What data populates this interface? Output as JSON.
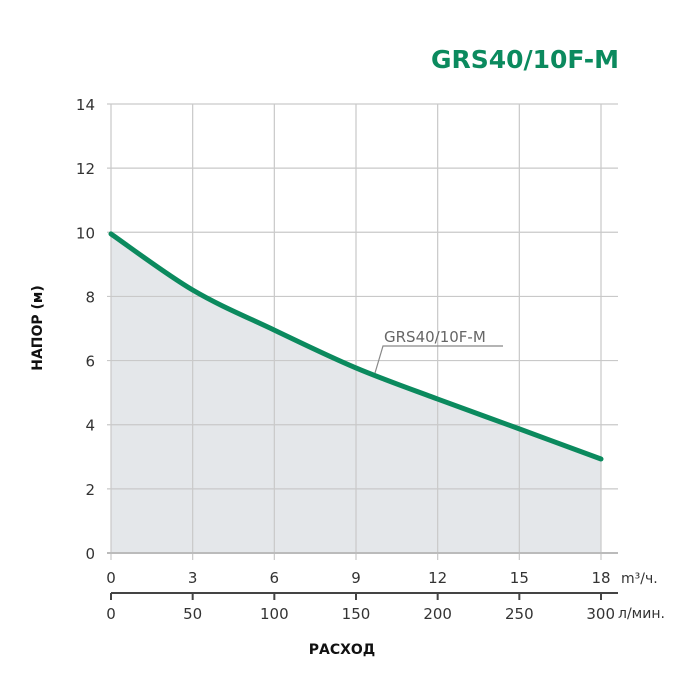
{
  "chart_data": {
    "type": "area",
    "title": "GRS40/10F-M",
    "ylabel": "НАПОР (м)",
    "xlabel": "РАСХОД",
    "x_unit": "m³/ч.",
    "x2_unit": "л/мин.",
    "xlim": [
      0,
      18
    ],
    "ylim": [
      0,
      14
    ],
    "grid": true,
    "x_ticks": [
      "0",
      "3",
      "6",
      "9",
      "12",
      "15",
      "18"
    ],
    "x2_ticks": [
      "0",
      "50",
      "100",
      "150",
      "200",
      "250",
      "300"
    ],
    "y_ticks": [
      "0",
      "2",
      "4",
      "6",
      "8",
      "10",
      "12",
      "14"
    ],
    "series": [
      {
        "name": "GRS40/10F-M",
        "x": [
          0,
          3,
          6,
          9,
          12,
          15,
          18
        ],
        "y": [
          9.95,
          8.2,
          6.95,
          5.77,
          4.8,
          3.87,
          2.93
        ]
      }
    ],
    "colors": {
      "curve": "#0b8a5e",
      "fill": "#dfe3e6",
      "title": "#0b8a5e",
      "grid": "#c9c9c9"
    }
  }
}
